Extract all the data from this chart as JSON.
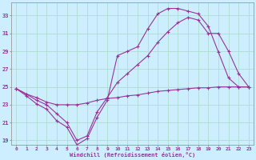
{
  "xlabel": "Windchill (Refroidissement éolien,°C)",
  "bg_color": "#cceeff",
  "grid_color": "#b0ddd0",
  "line_color": "#993399",
  "x": [
    0,
    1,
    2,
    3,
    4,
    5,
    6,
    7,
    8,
    9,
    10,
    11,
    12,
    13,
    14,
    15,
    16,
    17,
    18,
    19,
    20,
    21,
    22,
    23
  ],
  "line1": [
    24.8,
    24.2,
    23.8,
    23.3,
    23.0,
    23.0,
    23.0,
    23.2,
    23.5,
    23.7,
    23.8,
    24.0,
    24.1,
    24.3,
    24.5,
    24.6,
    24.7,
    24.8,
    24.9,
    24.9,
    25.0,
    25.0,
    25.0,
    25.0
  ],
  "line2": [
    24.8,
    24.2,
    23.5,
    23.0,
    22.0,
    21.0,
    19.0,
    19.5,
    22.2,
    23.8,
    25.5,
    26.5,
    27.5,
    28.5,
    30.0,
    31.2,
    32.2,
    32.8,
    32.5,
    31.0,
    31.0,
    29.0,
    26.5,
    25.0
  ],
  "line3": [
    24.8,
    24.0,
    23.1,
    22.5,
    21.2,
    20.5,
    18.5,
    19.2,
    21.6,
    23.5,
    28.5,
    29.0,
    29.5,
    31.5,
    33.2,
    33.8,
    33.8,
    33.5,
    33.2,
    31.8,
    28.9,
    26.0,
    25.0,
    25.0
  ],
  "ylim": [
    18.5,
    34.5
  ],
  "yticks": [
    19,
    21,
    23,
    25,
    27,
    29,
    31,
    33
  ],
  "xlim": [
    -0.5,
    23.5
  ]
}
